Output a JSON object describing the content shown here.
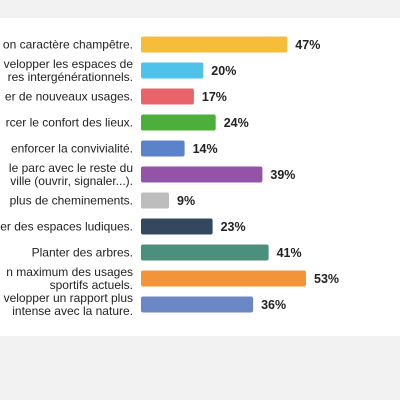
{
  "chart_data": {
    "type": "bar",
    "orientation": "horizontal",
    "categories": [
      [
        "on caractère champêtre."
      ],
      [
        "velopper les espaces de",
        "res intergénérationnels."
      ],
      [
        "er de nouveaux usages."
      ],
      [
        "rcer le confort des lieux."
      ],
      [
        "enforcer la convivialité."
      ],
      [
        "le parc avec le reste du",
        "ville (ouvrir, signaler...)."
      ],
      [
        "plus de cheminements."
      ],
      [
        "er des espaces ludiques."
      ],
      [
        "Planter des arbres."
      ],
      [
        "n maximum des usages",
        "sportifs actuels."
      ],
      [
        "velopper un rapport plus",
        "intense avec la nature."
      ]
    ],
    "values": [
      47,
      20,
      17,
      24,
      14,
      39,
      9,
      23,
      41,
      53,
      36
    ],
    "value_labels": [
      "47%",
      "20%",
      "17%",
      "24%",
      "14%",
      "39%",
      "9%",
      "23%",
      "41%",
      "53%",
      "36%"
    ],
    "colors": [
      "#f6bd3b",
      "#4fc2ea",
      "#e96468",
      "#4caf3c",
      "#5b83c9",
      "#9354a8",
      "#bdbdbd",
      "#34475e",
      "#4b8f7d",
      "#f4943a",
      "#6b87c5"
    ],
    "xlim": [
      0,
      53
    ],
    "grid": false,
    "legend": "none"
  }
}
